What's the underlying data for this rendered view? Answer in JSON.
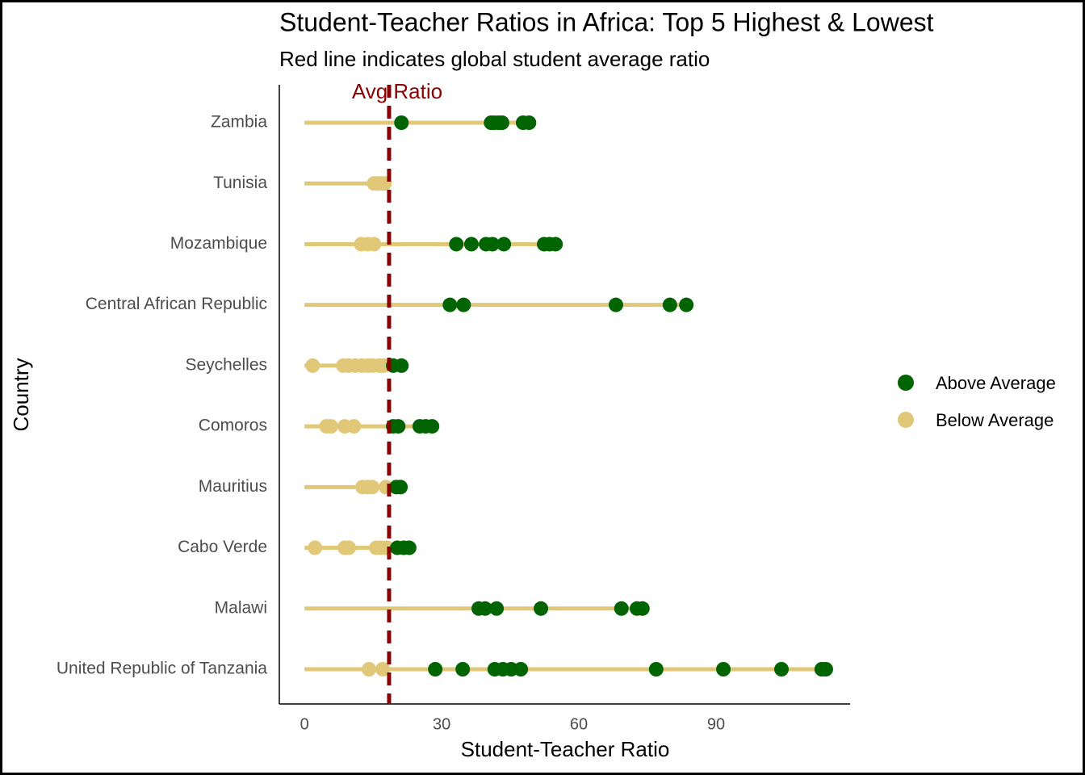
{
  "chart_data": {
    "type": "dot-range",
    "title": "Student-Teacher Ratios in Africa: Top 5 Highest & Lowest",
    "subtitle": "Red line indicates global student average ratio",
    "x_label": "Student-Teacher Ratio",
    "y_label": "Country",
    "annotation": "Avg Ratio",
    "average": 18.5,
    "average_color": "#8b0000",
    "line_color": "#e1c878",
    "categories": [
      "Zambia",
      "Tunisia",
      "Mozambique",
      "Central African Republic",
      "Seychelles",
      "Comoros",
      "Mauritius",
      "Cabo Verde",
      "Malawi",
      "United Republic of Tanzania"
    ],
    "values": [
      [
        21.2,
        40.8,
        41.5,
        42.4,
        43.2,
        47.8,
        49.1
      ],
      [
        15.2,
        16.1,
        16.9,
        17.5
      ],
      [
        12.4,
        13.8,
        15.2,
        33.2,
        36.5,
        39.7,
        41.1,
        43.6,
        52.4,
        53.6,
        54.9
      ],
      [
        31.8,
        34.8,
        68.1,
        79.9,
        83.5
      ],
      [
        1.8,
        8.5,
        9.7,
        11.1,
        12.5,
        13.8,
        15.0,
        16.4,
        17.3,
        19.4,
        21.2
      ],
      [
        4.8,
        5.8,
        8.8,
        10.8,
        19.4,
        20.5,
        25.2,
        26.5,
        27.9
      ],
      [
        12.7,
        13.8,
        14.8,
        17.8,
        20.1,
        21.0
      ],
      [
        2.3,
        8.8,
        9.7,
        15.7,
        16.8,
        18.0,
        20.3,
        21.7,
        22.9
      ],
      [
        38.1,
        39.5,
        42.0,
        51.7,
        69.3,
        72.7,
        73.9
      ],
      [
        14.1,
        17.1,
        28.6,
        34.6,
        41.6,
        43.4,
        45.2,
        47.3,
        76.9,
        91.6,
        104.3,
        113.1,
        114.0
      ]
    ],
    "series": [
      {
        "name": "Above Average",
        "color": "#006400"
      },
      {
        "name": "Below Average",
        "color": "#e1c878"
      }
    ],
    "xlim": [
      -5.5,
      119.3
    ],
    "xticks": [
      0,
      30,
      60,
      90
    ]
  }
}
